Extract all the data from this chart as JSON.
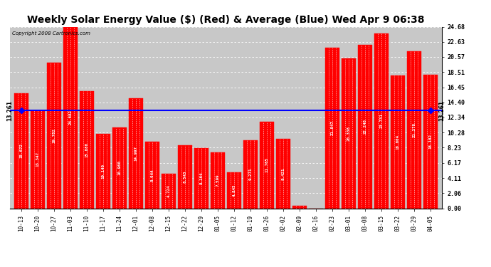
{
  "title": "Weekly Solar Energy Value ($) (Red) & Average (Blue) Wed Apr 9 06:38",
  "copyright": "Copyright 2008 Cartronics.com",
  "categories": [
    "10-13",
    "10-20",
    "10-27",
    "11-03",
    "11-10",
    "11-17",
    "11-24",
    "12-01",
    "12-08",
    "12-15",
    "12-22",
    "12-29",
    "01-05",
    "01-12",
    "01-19",
    "01-26",
    "02-02",
    "02-09",
    "02-16",
    "02-23",
    "03-01",
    "03-08",
    "03-15",
    "03-22",
    "03-29",
    "04-05"
  ],
  "values": [
    15.672,
    13.347,
    19.782,
    24.682,
    15.888,
    10.14,
    10.96,
    14.997,
    9.044,
    4.724,
    8.543,
    8.164,
    7.599,
    4.845,
    9.271,
    11.765,
    9.421,
    0.317,
    0.0,
    21.847,
    20.338,
    22.248,
    23.731,
    18.004,
    21.378,
    18.182
  ],
  "average": 13.261,
  "bar_color": "#FF0000",
  "avg_line_color": "#0000FF",
  "background_color": "#FFFFFF",
  "plot_bg_color": "#C8C8C8",
  "title_fontsize": 10,
  "ylabel_right": [
    "0.00",
    "2.06",
    "4.11",
    "6.17",
    "8.23",
    "10.28",
    "12.34",
    "14.40",
    "16.45",
    "18.51",
    "20.57",
    "22.63",
    "24.68"
  ],
  "ytick_vals": [
    0.0,
    2.06,
    4.11,
    6.17,
    8.23,
    10.28,
    12.34,
    14.4,
    16.45,
    18.51,
    20.57,
    22.63,
    24.68
  ],
  "ylim": [
    0,
    24.68
  ],
  "avg_label": "13.261",
  "bar_edge_color": "#FF0000"
}
